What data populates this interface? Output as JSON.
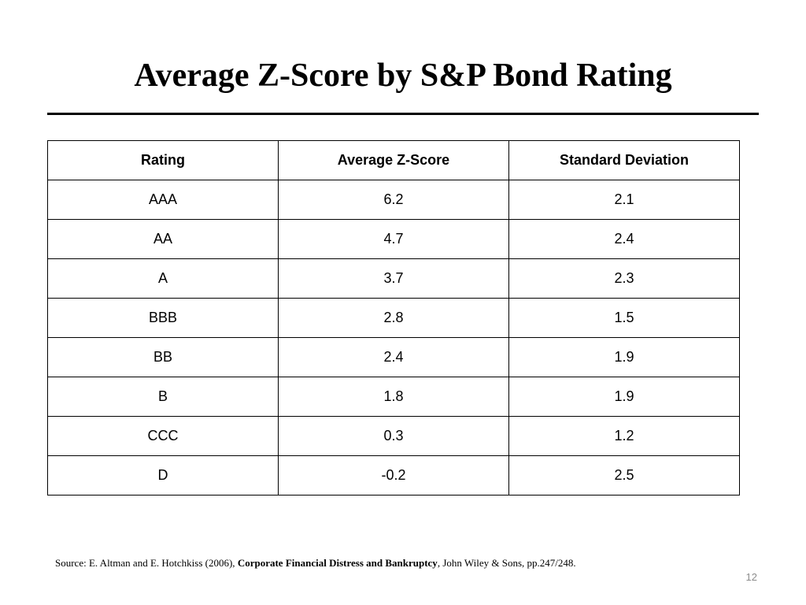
{
  "slide": {
    "title": "Average Z-Score by S&P Bond Rating",
    "page_number": "12"
  },
  "table": {
    "headers": [
      "Rating",
      "Average Z-Score",
      "Standard Deviation"
    ],
    "rows": [
      [
        "AAA",
        "6.2",
        "2.1"
      ],
      [
        "AA",
        "4.7",
        "2.4"
      ],
      [
        "A",
        "3.7",
        "2.3"
      ],
      [
        "BBB",
        "2.8",
        "1.5"
      ],
      [
        "BB",
        "2.4",
        "1.9"
      ],
      [
        "B",
        "1.8",
        "1.9"
      ],
      [
        "CCC",
        "0.3",
        "1.2"
      ],
      [
        "D",
        "-0.2",
        "2.5"
      ]
    ]
  },
  "source": {
    "prefix": "Source: E. Altman and E. Hotchkiss (2006), ",
    "book_title": "Corporate Financial Distress and Bankruptcy",
    "suffix": ", John Wiley & Sons, pp.247/248."
  }
}
